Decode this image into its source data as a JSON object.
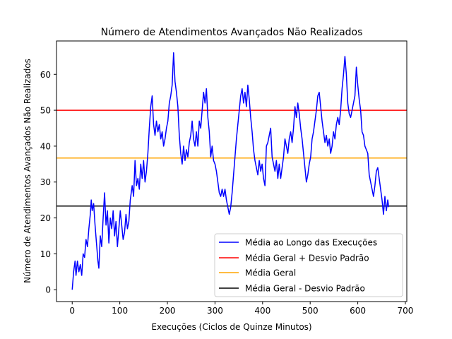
{
  "chart_data": {
    "type": "line",
    "title": "Número de Atendimentos Avançados Não Realizados",
    "xlabel": "Execuções (Ciclos de Quinze Minutos)",
    "ylabel": "Número de Atendimentos Avançados Não Realizados",
    "xlim": [
      -33,
      703
    ],
    "ylim": [
      -3.3,
      69.3
    ],
    "xticks": [
      0,
      100,
      200,
      300,
      400,
      500,
      600,
      700
    ],
    "yticks": [
      0,
      10,
      20,
      30,
      40,
      50,
      60
    ],
    "grid": false,
    "legend_position": "lower-right",
    "series": [
      {
        "name": "Média ao Longo das Execuções",
        "color": "#0000ff",
        "kind": "line",
        "points": [
          [
            0,
            0
          ],
          [
            3,
            5
          ],
          [
            6,
            8
          ],
          [
            8,
            4
          ],
          [
            11,
            8
          ],
          [
            14,
            5
          ],
          [
            17,
            7
          ],
          [
            20,
            4
          ],
          [
            23,
            10
          ],
          [
            26,
            9
          ],
          [
            29,
            14
          ],
          [
            32,
            12
          ],
          [
            35,
            17
          ],
          [
            38,
            21
          ],
          [
            40,
            25
          ],
          [
            42,
            22
          ],
          [
            45,
            24
          ],
          [
            48,
            18
          ],
          [
            51,
            13
          ],
          [
            54,
            8
          ],
          [
            56,
            6
          ],
          [
            59,
            15
          ],
          [
            62,
            12
          ],
          [
            65,
            20
          ],
          [
            68,
            27
          ],
          [
            71,
            18
          ],
          [
            74,
            22
          ],
          [
            77,
            13
          ],
          [
            80,
            20
          ],
          [
            83,
            17
          ],
          [
            86,
            22
          ],
          [
            89,
            15
          ],
          [
            92,
            19
          ],
          [
            95,
            12
          ],
          [
            98,
            17
          ],
          [
            101,
            22
          ],
          [
            104,
            18
          ],
          [
            107,
            14
          ],
          [
            110,
            16
          ],
          [
            113,
            21
          ],
          [
            116,
            17
          ],
          [
            119,
            19
          ],
          [
            122,
            25
          ],
          [
            126,
            29
          ],
          [
            129,
            26
          ],
          [
            132,
            36
          ],
          [
            135,
            29
          ],
          [
            138,
            31
          ],
          [
            141,
            28
          ],
          [
            144,
            35
          ],
          [
            147,
            31
          ],
          [
            150,
            36
          ],
          [
            153,
            30
          ],
          [
            156,
            33
          ],
          [
            159,
            38
          ],
          [
            162,
            45
          ],
          [
            165,
            51
          ],
          [
            168,
            54
          ],
          [
            171,
            46
          ],
          [
            174,
            43
          ],
          [
            177,
            47
          ],
          [
            180,
            44
          ],
          [
            183,
            46
          ],
          [
            186,
            42
          ],
          [
            189,
            44
          ],
          [
            192,
            40
          ],
          [
            195,
            42
          ],
          [
            198,
            45
          ],
          [
            201,
            47
          ],
          [
            204,
            52
          ],
          [
            207,
            54
          ],
          [
            210,
            57
          ],
          [
            213,
            66
          ],
          [
            216,
            58
          ],
          [
            219,
            55
          ],
          [
            222,
            51
          ],
          [
            225,
            43
          ],
          [
            228,
            38
          ],
          [
            231,
            35
          ],
          [
            234,
            40
          ],
          [
            237,
            36
          ],
          [
            240,
            39
          ],
          [
            243,
            37
          ],
          [
            246,
            41
          ],
          [
            249,
            43
          ],
          [
            252,
            47
          ],
          [
            255,
            42
          ],
          [
            258,
            40
          ],
          [
            261,
            44
          ],
          [
            264,
            40
          ],
          [
            267,
            47
          ],
          [
            270,
            45
          ],
          [
            273,
            50
          ],
          [
            276,
            55
          ],
          [
            279,
            52
          ],
          [
            282,
            56
          ],
          [
            285,
            48
          ],
          [
            288,
            44
          ],
          [
            291,
            37
          ],
          [
            294,
            40
          ],
          [
            297,
            36
          ],
          [
            300,
            35
          ],
          [
            303,
            33
          ],
          [
            306,
            30
          ],
          [
            309,
            27
          ],
          [
            312,
            26
          ],
          [
            315,
            28
          ],
          [
            318,
            26
          ],
          [
            321,
            28
          ],
          [
            324,
            25
          ],
          [
            327,
            23
          ],
          [
            330,
            21
          ],
          [
            333,
            23
          ],
          [
            336,
            27
          ],
          [
            339,
            32
          ],
          [
            342,
            37
          ],
          [
            345,
            42
          ],
          [
            348,
            46
          ],
          [
            351,
            50
          ],
          [
            354,
            54
          ],
          [
            357,
            56
          ],
          [
            360,
            52
          ],
          [
            363,
            55
          ],
          [
            366,
            51
          ],
          [
            369,
            57
          ],
          [
            372,
            53
          ],
          [
            375,
            48
          ],
          [
            378,
            44
          ],
          [
            381,
            39
          ],
          [
            384,
            36
          ],
          [
            387,
            34
          ],
          [
            390,
            32
          ],
          [
            393,
            36
          ],
          [
            396,
            33
          ],
          [
            399,
            35
          ],
          [
            402,
            31
          ],
          [
            405,
            29
          ],
          [
            408,
            40
          ],
          [
            411,
            41
          ],
          [
            414,
            43
          ],
          [
            417,
            45
          ],
          [
            420,
            37
          ],
          [
            423,
            35
          ],
          [
            426,
            33
          ],
          [
            429,
            36
          ],
          [
            432,
            31
          ],
          [
            435,
            35
          ],
          [
            438,
            31
          ],
          [
            441,
            34
          ],
          [
            444,
            37
          ],
          [
            447,
            42
          ],
          [
            450,
            40
          ],
          [
            453,
            38
          ],
          [
            456,
            42
          ],
          [
            459,
            44
          ],
          [
            462,
            41
          ],
          [
            465,
            45
          ],
          [
            468,
            51
          ],
          [
            471,
            48
          ],
          [
            474,
            52
          ],
          [
            477,
            49
          ],
          [
            480,
            45
          ],
          [
            483,
            42
          ],
          [
            486,
            38
          ],
          [
            489,
            34
          ],
          [
            492,
            30
          ],
          [
            495,
            32
          ],
          [
            498,
            35
          ],
          [
            501,
            37
          ],
          [
            504,
            42
          ],
          [
            507,
            44
          ],
          [
            510,
            47
          ],
          [
            513,
            50
          ],
          [
            516,
            54
          ],
          [
            519,
            55
          ],
          [
            522,
            51
          ],
          [
            525,
            47
          ],
          [
            528,
            44
          ],
          [
            531,
            41
          ],
          [
            534,
            43
          ],
          [
            537,
            40
          ],
          [
            540,
            42
          ],
          [
            543,
            38
          ],
          [
            546,
            40
          ],
          [
            549,
            44
          ],
          [
            552,
            42
          ],
          [
            555,
            46
          ],
          [
            558,
            48
          ],
          [
            561,
            46
          ],
          [
            564,
            50
          ],
          [
            567,
            56
          ],
          [
            570,
            60
          ],
          [
            573,
            65
          ],
          [
            576,
            60
          ],
          [
            579,
            52
          ],
          [
            582,
            49
          ],
          [
            585,
            48
          ],
          [
            588,
            50
          ],
          [
            591,
            52
          ],
          [
            594,
            54
          ],
          [
            597,
            62
          ],
          [
            600,
            57
          ],
          [
            603,
            53
          ],
          [
            606,
            50
          ],
          [
            609,
            44
          ],
          [
            612,
            43
          ],
          [
            615,
            40
          ],
          [
            618,
            39
          ],
          [
            621,
            38
          ],
          [
            624,
            32
          ],
          [
            627,
            30
          ],
          [
            630,
            28
          ],
          [
            633,
            26
          ],
          [
            636,
            29
          ],
          [
            639,
            33
          ],
          [
            642,
            34
          ],
          [
            645,
            31
          ],
          [
            648,
            28
          ],
          [
            651,
            25
          ],
          [
            654,
            21
          ],
          [
            657,
            26
          ],
          [
            660,
            22
          ],
          [
            663,
            25
          ],
          [
            665,
            23
          ]
        ]
      },
      {
        "name": "Média Geral + Desvio Padrão",
        "color": "#ff0000",
        "kind": "hline",
        "value": 50
      },
      {
        "name": "Média Geral",
        "color": "#ffa500",
        "kind": "hline",
        "value": 36.7
      },
      {
        "name": "Média Geral - Desvio Padrão",
        "color": "#000000",
        "kind": "hline",
        "value": 23.3
      }
    ]
  }
}
